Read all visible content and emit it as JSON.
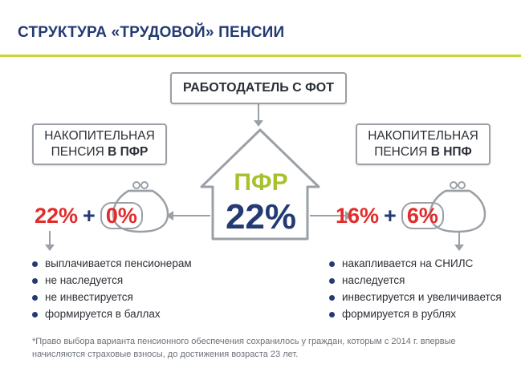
{
  "title": "СТРУКТУРА «ТРУДОВОЙ» ПЕНСИИ",
  "employer_box": "РАБОТОДАТЕЛЬ С ФОТ",
  "left_box": {
    "line1": "НАКОПИТЕЛЬНАЯ",
    "line2_prefix": "ПЕНСИЯ ",
    "line2_bold": "В ПФР"
  },
  "right_box": {
    "line1": "НАКОПИТЕЛЬНАЯ",
    "line2_prefix": "ПЕНСИЯ ",
    "line2_bold": "В НПФ"
  },
  "center": {
    "label": "ПФР",
    "value": "22%"
  },
  "left_split": {
    "a": "22%",
    "op": "+",
    "b": "0%"
  },
  "right_split": {
    "a": "16%",
    "op": "+",
    "b": "6%"
  },
  "left_list": [
    "выплачивается пенсионерам",
    "не наследуется",
    "не инвестируется",
    "формируется в баллах"
  ],
  "right_list": [
    "накапливается на СНИЛС",
    "наследуется",
    "инвестируется и увеличивается",
    "формируется в рублях"
  ],
  "footnote": "*Право выбора варианта пенсионного обеспечения сохранилось у граждан, которым с 2014 г. впервые начисляются страховые взносы,  до достижения возраста 23 лет.",
  "colors": {
    "navy": "#243a73",
    "red": "#e32b2b",
    "green": "#a6c12b",
    "gray": "#9aa0a6",
    "accent_line": "#c5d838"
  }
}
